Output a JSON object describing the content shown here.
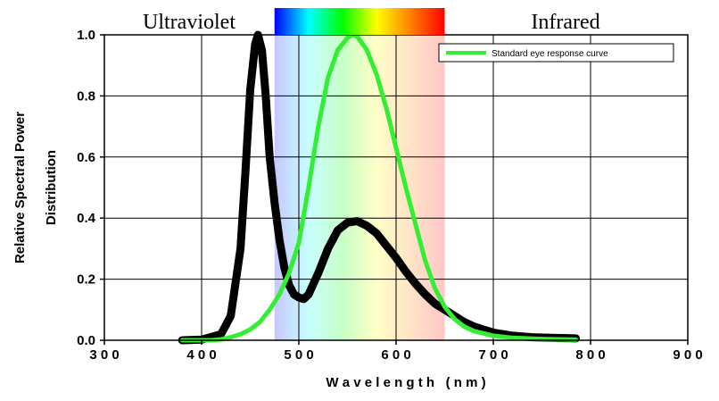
{
  "chart_data": {
    "type": "line",
    "title": "",
    "xlabel": "W a v e l e n g t h   ( n m )",
    "ylabel_line1": "Relative Spectral Power",
    "ylabel_line2": "Distribution",
    "xlim": [
      300,
      900
    ],
    "ylim": [
      0,
      1.0
    ],
    "x_ticks": [
      300,
      400,
      500,
      600,
      700,
      800,
      900
    ],
    "x_tick_labels": [
      "3 0 0",
      "4 0 0",
      "5 0 0",
      "6 0 0",
      "7 0 0",
      "8 0 0",
      "9 0 0"
    ],
    "y_ticks": [
      0,
      0.2,
      0.4,
      0.6,
      0.8,
      1.0
    ],
    "y_tick_labels": [
      "0.0",
      "0.2",
      "0.4",
      "0.6",
      "0.8",
      "1.0"
    ],
    "grid": true,
    "legend_position": "top-right",
    "regions": {
      "ultraviolet_label": "Ultraviolet",
      "infrared_label": "Infrared",
      "visible_band": [
        475,
        650
      ],
      "spectrum_colors": [
        "#0000ff",
        "#00ffff",
        "#00ff00",
        "#ffff00",
        "#ff8000",
        "#ff0000"
      ]
    },
    "series": [
      {
        "color": "#000000",
        "points": [
          [
            380,
            0.0
          ],
          [
            400,
            0.002
          ],
          [
            420,
            0.02
          ],
          [
            430,
            0.08
          ],
          [
            440,
            0.3
          ],
          [
            445,
            0.55
          ],
          [
            450,
            0.82
          ],
          [
            455,
            0.97
          ],
          [
            458,
            1.0
          ],
          [
            462,
            0.95
          ],
          [
            466,
            0.8
          ],
          [
            470,
            0.6
          ],
          [
            475,
            0.45
          ],
          [
            480,
            0.33
          ],
          [
            485,
            0.24
          ],
          [
            490,
            0.18
          ],
          [
            495,
            0.15
          ],
          [
            500,
            0.14
          ],
          [
            505,
            0.135
          ],
          [
            510,
            0.15
          ],
          [
            520,
            0.22
          ],
          [
            530,
            0.3
          ],
          [
            540,
            0.36
          ],
          [
            550,
            0.385
          ],
          [
            560,
            0.39
          ],
          [
            570,
            0.375
          ],
          [
            580,
            0.35
          ],
          [
            590,
            0.31
          ],
          [
            600,
            0.27
          ],
          [
            610,
            0.225
          ],
          [
            620,
            0.185
          ],
          [
            630,
            0.15
          ],
          [
            640,
            0.12
          ],
          [
            650,
            0.1
          ],
          [
            660,
            0.08
          ],
          [
            670,
            0.06
          ],
          [
            680,
            0.045
          ],
          [
            690,
            0.035
          ],
          [
            700,
            0.025
          ],
          [
            720,
            0.015
          ],
          [
            740,
            0.01
          ],
          [
            760,
            0.008
          ],
          [
            785,
            0.006
          ]
        ]
      },
      {
        "name": "Standard eye response curve",
        "color": "#33ee33",
        "points": [
          [
            380,
            0.0
          ],
          [
            410,
            0.0
          ],
          [
            420,
            0.003
          ],
          [
            430,
            0.01
          ],
          [
            440,
            0.02
          ],
          [
            450,
            0.035
          ],
          [
            460,
            0.06
          ],
          [
            470,
            0.1
          ],
          [
            480,
            0.15
          ],
          [
            490,
            0.22
          ],
          [
            500,
            0.32
          ],
          [
            510,
            0.5
          ],
          [
            520,
            0.7
          ],
          [
            530,
            0.86
          ],
          [
            540,
            0.95
          ],
          [
            550,
            0.99
          ],
          [
            555,
            1.0
          ],
          [
            560,
            0.995
          ],
          [
            570,
            0.95
          ],
          [
            580,
            0.87
          ],
          [
            590,
            0.76
          ],
          [
            600,
            0.63
          ],
          [
            610,
            0.5
          ],
          [
            620,
            0.38
          ],
          [
            630,
            0.26
          ],
          [
            640,
            0.17
          ],
          [
            650,
            0.11
          ],
          [
            660,
            0.07
          ],
          [
            670,
            0.045
          ],
          [
            680,
            0.03
          ],
          [
            700,
            0.015
          ],
          [
            720,
            0.008
          ],
          [
            750,
            0.004
          ],
          [
            785,
            0.002
          ]
        ]
      }
    ]
  }
}
